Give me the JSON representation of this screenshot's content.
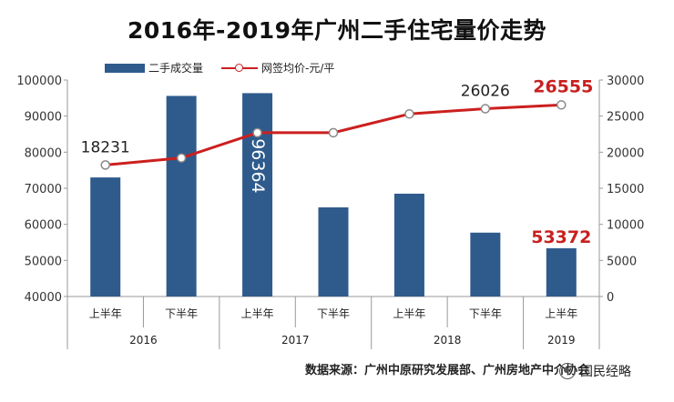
{
  "title": "2016年-2019年广州二手住宅量价走势",
  "source": "数据来源：广州中原研究发展部、广州房地产中介协会",
  "account": "国民经略",
  "chart_data": {
    "type": "bar",
    "title": "2016年-2019年广州二手住宅量价走势",
    "categories": [
      "上半年",
      "下半年",
      "上半年",
      "下半年",
      "上半年",
      "下半年",
      "上半年"
    ],
    "groups": [
      {
        "label": "2016",
        "span": 2
      },
      {
        "label": "2017",
        "span": 2
      },
      {
        "label": "2018",
        "span": 2
      },
      {
        "label": "2019",
        "span": 1
      }
    ],
    "series": [
      {
        "name": "二手成交量",
        "type": "bar",
        "axis": "left",
        "color": "#2e5b8c",
        "values": [
          73000,
          95600,
          96364,
          64700,
          68500,
          57700,
          53372
        ]
      },
      {
        "name": "网签均价-元/平",
        "type": "line",
        "axis": "right",
        "color": "#cc1f1f",
        "values": [
          18231,
          19200,
          22700,
          22700,
          25300,
          26026,
          26555
        ]
      }
    ],
    "data_labels": [
      {
        "series": 1,
        "index": 0,
        "text": "18231",
        "color": "#222222"
      },
      {
        "series": 1,
        "index": 5,
        "text": "26026",
        "color": "#222222"
      },
      {
        "series": 1,
        "index": 6,
        "text": "26555",
        "color": "#c82020"
      },
      {
        "series": 0,
        "index": 2,
        "text": "96364",
        "color": "#ffffff"
      },
      {
        "series": 0,
        "index": 6,
        "text": "53372",
        "color": "#c82020"
      }
    ],
    "y_left": {
      "min": 40000,
      "max": 100000,
      "ticks": [
        40000,
        50000,
        60000,
        70000,
        80000,
        90000,
        100000
      ]
    },
    "y_right": {
      "min": 0,
      "max": 30000,
      "ticks": [
        0,
        5000,
        10000,
        15000,
        20000,
        25000,
        30000
      ]
    },
    "grid": false,
    "legend": "top"
  }
}
